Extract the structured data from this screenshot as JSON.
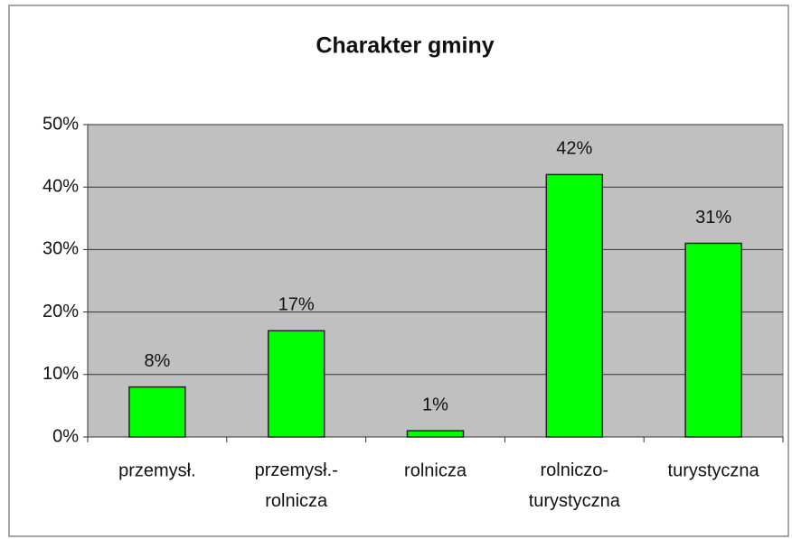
{
  "chart_data": {
    "type": "bar",
    "title": "Charakter gminy",
    "categories": [
      "przemysł.",
      "przemysł.-\nrolnicza",
      "rolnicza",
      "rolniczo-\nturystyczna",
      "turystyczna"
    ],
    "values": [
      8,
      17,
      1,
      42,
      31
    ],
    "value_labels": [
      "8%",
      "17%",
      "1%",
      "42%",
      "31%"
    ],
    "color": "#00ff00",
    "ylim": [
      0,
      50
    ],
    "yticks": [
      {
        "value": 0,
        "label": "0%"
      },
      {
        "value": 10,
        "label": "10%"
      },
      {
        "value": 20,
        "label": "20%"
      },
      {
        "value": 30,
        "label": "30%"
      },
      {
        "value": 40,
        "label": "40%"
      },
      {
        "value": 50,
        "label": "50%"
      }
    ],
    "grid": true
  }
}
